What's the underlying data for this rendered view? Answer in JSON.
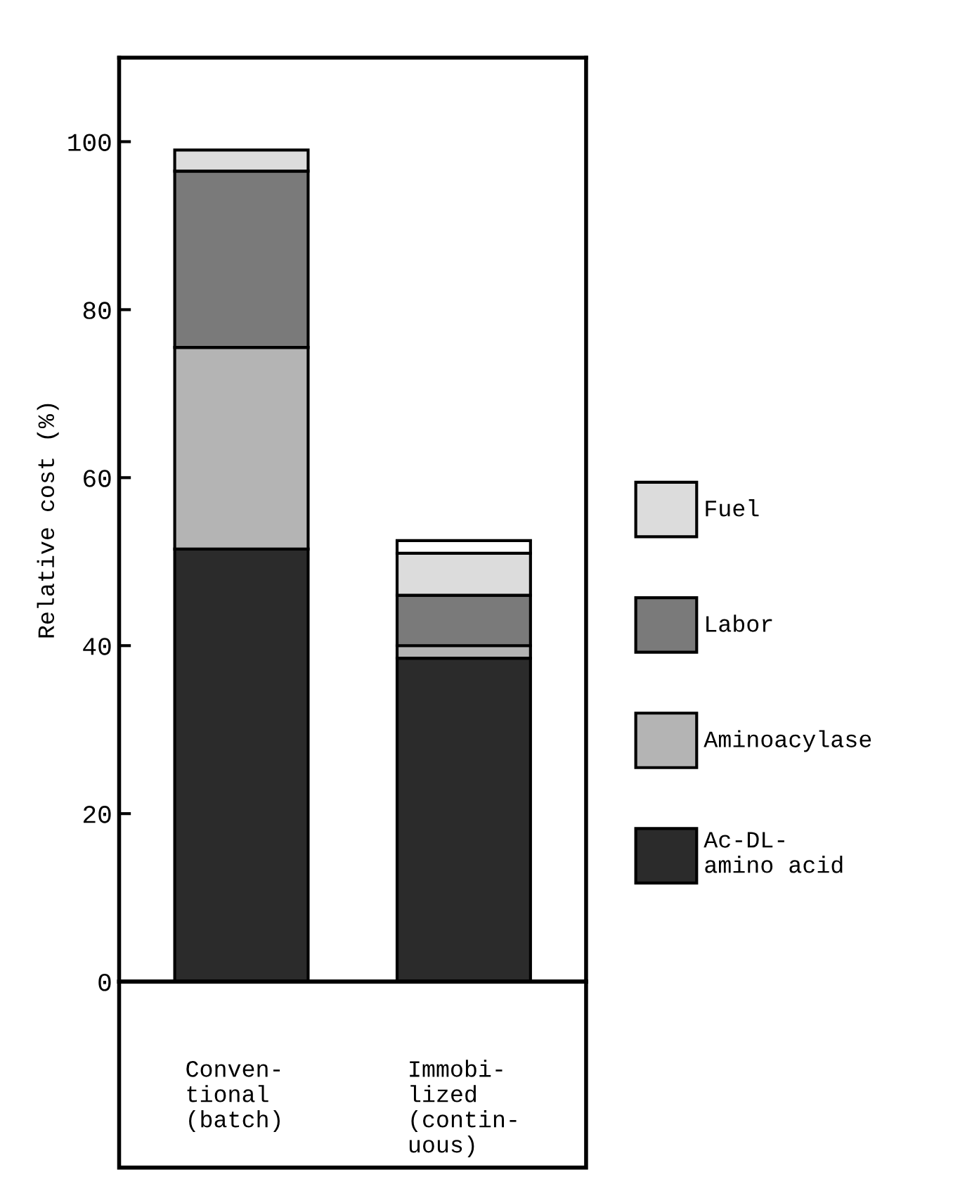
{
  "chart_data": {
    "type": "bar",
    "stacked": true,
    "ylabel": "Relative cost (%)",
    "categories": [
      "Conven-\ntional\n(batch)",
      "Immobi-\nlized\n(contin-\nuous)"
    ],
    "series": [
      {
        "name": "Ac-DL-\namino acid",
        "color": "#2b2b2b",
        "values": [
          51.5,
          38.5
        ]
      },
      {
        "name": "Aminoacylase",
        "color": "#b4b4b4",
        "values": [
          24,
          1.5
        ]
      },
      {
        "name": "Labor",
        "color": "#7a7a7a",
        "values": [
          21,
          6
        ]
      },
      {
        "name": "Fuel",
        "color": "#dcdcdc",
        "values": [
          2.5,
          5
        ]
      },
      {
        "color": "#ffffff",
        "values": [
          null,
          1.5
        ]
      }
    ],
    "ylim": [
      0,
      110
    ],
    "yticks": [
      0,
      20,
      40,
      60,
      80,
      100
    ],
    "grid": false,
    "legend": "right"
  }
}
